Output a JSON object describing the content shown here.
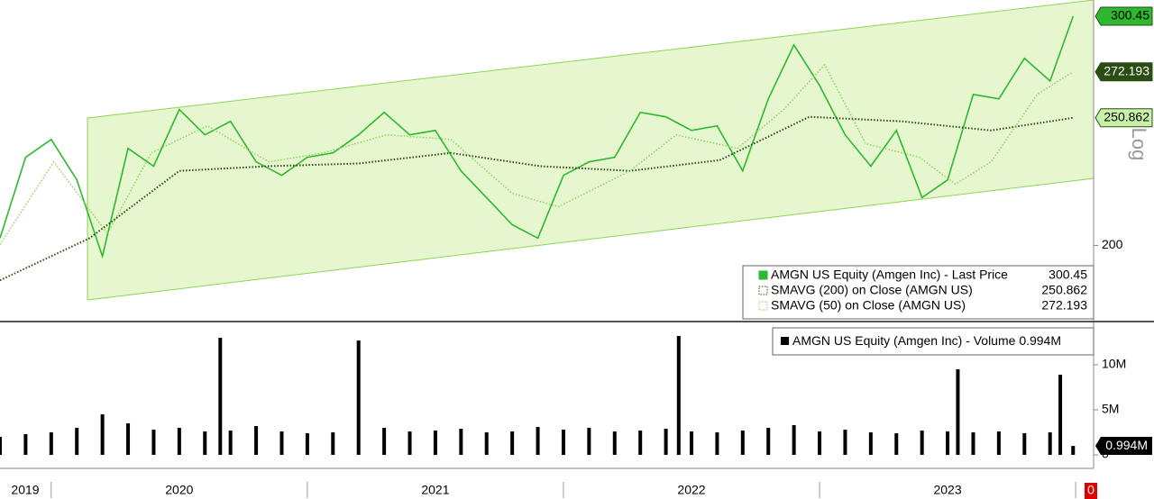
{
  "chart_data": [
    {
      "type": "line",
      "log_scale": true,
      "y_axis_label": "Log",
      "xlim": [
        2019.8,
        2024.07
      ],
      "ylim": [
        175,
        309.2
      ],
      "yticks": [
        200
      ],
      "series": [
        {
          "name": "AMGN US Equity (Amgen Inc) - Last Price",
          "color": "#2db82d",
          "x": [
            2019.8,
            2019.9,
            2020.0,
            2020.1,
            2020.2,
            2020.3,
            2020.4,
            2020.5,
            2020.6,
            2020.7,
            2020.8,
            2020.9,
            2021.0,
            2021.1,
            2021.2,
            2021.3,
            2021.4,
            2021.5,
            2021.6,
            2021.7,
            2021.8,
            2021.9,
            2022.0,
            2022.1,
            2022.2,
            2022.3,
            2022.4,
            2022.5,
            2022.6,
            2022.7,
            2022.8,
            2022.9,
            2023.0,
            2023.1,
            2023.2,
            2023.3,
            2023.4,
            2023.5,
            2023.6,
            2023.7,
            2023.8,
            2023.9,
            2023.99
          ],
          "values": [
            202.6,
            233.9,
            241.4,
            224.7,
            196.2,
            237.6,
            230.2,
            254.6,
            243.4,
            249.3,
            232.0,
            226.5,
            233.9,
            235.7,
            243.4,
            253.3,
            243.4,
            245.3,
            228.3,
            217.7,
            207.5,
            202.6,
            226.5,
            232.0,
            233.9,
            253.3,
            251.3,
            245.3,
            247.3,
            228.3,
            259.4,
            285.5,
            265.7,
            243.4,
            230.2,
            245.3,
            217.7,
            224.7,
            261.5,
            259.4,
            278.8,
            267.8,
            300.45
          ]
        },
        {
          "name": "SMAVG (200)  on Close (AMGN US)",
          "color": "#2a4d14",
          "x": [
            2019.8,
            2020.15,
            2020.5,
            2020.85,
            2021.2,
            2021.56,
            2021.91,
            2022.26,
            2022.61,
            2022.96,
            2023.32,
            2023.67,
            2023.99
          ],
          "values": [
            188.0,
            202.6,
            228.3,
            230.2,
            231.3,
            235.7,
            230.2,
            228.3,
            232.7,
            251.3,
            249.3,
            245.3,
            250.862
          ]
        },
        {
          "name": "SMAVG (50)  on Close (AMGN US)",
          "color": "#8fd35a",
          "x": [
            2019.8,
            2020.01,
            2020.22,
            2020.39,
            2020.61,
            2020.85,
            2021.06,
            2021.31,
            2021.56,
            2021.8,
            2021.98,
            2022.26,
            2022.44,
            2022.68,
            2022.86,
            2023.02,
            2023.18,
            2023.39,
            2023.53,
            2023.67,
            2023.85,
            2023.99
          ],
          "values": [
            200.3,
            232.0,
            204.2,
            235.7,
            247.3,
            232.0,
            235.7,
            243.4,
            241.4,
            219.4,
            214.2,
            228.3,
            243.4,
            237.6,
            254.6,
            275.6,
            239.6,
            233.9,
            223.0,
            232.0,
            261.5,
            272.193
          ]
        }
      ]
    },
    {
      "type": "bar",
      "xlim": [
        2019.8,
        2024.07
      ],
      "ylim": [
        0,
        14.5
      ],
      "yticks": [
        0,
        {
          "value": 5,
          "label": "5M"
        },
        {
          "value": 10,
          "label": "10M"
        }
      ],
      "xticks": [
        2020,
        2021,
        2022,
        2023,
        2024
      ],
      "x_labels": [
        2019,
        2020,
        2021,
        2022,
        2023
      ],
      "cursor_label": "0",
      "series": [
        {
          "name": "AMGN US Equity (Amgen Inc) - Volume",
          "color": "#000000",
          "last_label": "0.994M",
          "x": [
            2019.8,
            2019.9,
            2020.0,
            2020.1,
            2020.2,
            2020.3,
            2020.4,
            2020.5,
            2020.6,
            2020.66,
            2020.7,
            2020.8,
            2020.9,
            2021.0,
            2021.1,
            2021.2,
            2021.3,
            2021.4,
            2021.5,
            2021.6,
            2021.7,
            2021.8,
            2021.9,
            2022.0,
            2022.1,
            2022.2,
            2022.3,
            2022.4,
            2022.45,
            2022.5,
            2022.6,
            2022.7,
            2022.8,
            2022.9,
            2023.0,
            2023.1,
            2023.2,
            2023.3,
            2023.4,
            2023.5,
            2023.54,
            2023.6,
            2023.7,
            2023.8,
            2023.9,
            2023.94,
            2023.99
          ],
          "values": [
            2.0,
            2.3,
            2.5,
            3.0,
            4.5,
            3.5,
            2.8,
            3.0,
            2.6,
            13.0,
            2.7,
            3.2,
            2.6,
            2.4,
            2.5,
            12.7,
            3.0,
            2.6,
            2.7,
            2.9,
            2.5,
            2.6,
            3.1,
            2.8,
            3.0,
            2.6,
            2.7,
            2.9,
            13.2,
            2.6,
            2.5,
            2.7,
            3.0,
            3.3,
            2.6,
            2.8,
            2.5,
            2.4,
            2.7,
            2.6,
            9.5,
            2.5,
            2.6,
            2.4,
            2.5,
            8.9,
            0.994
          ]
        }
      ]
    }
  ]
}
